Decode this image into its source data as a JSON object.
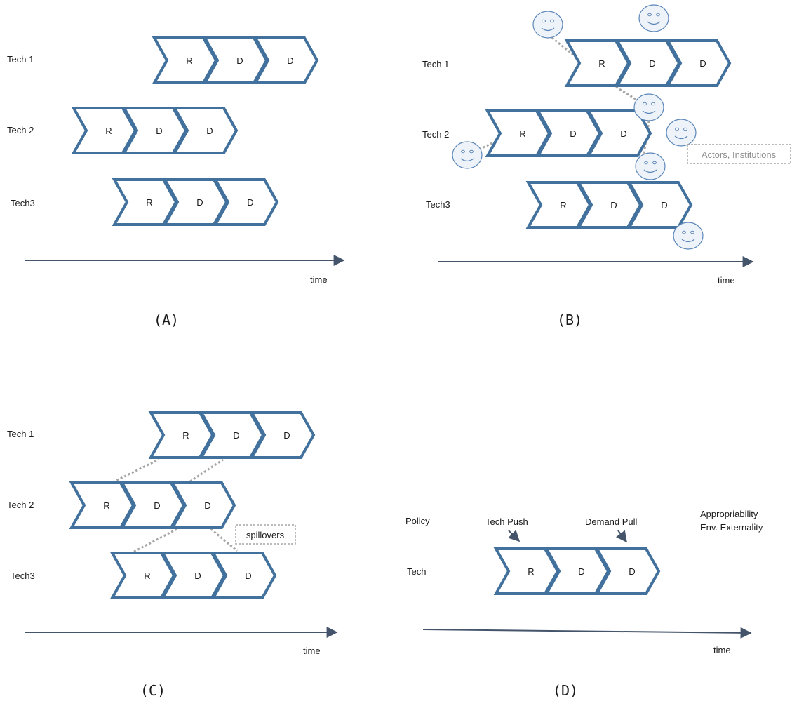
{
  "colors": {
    "chevron": "#41719c",
    "axis": "#44546a",
    "dotted": "#a6a6a6",
    "callout_text": "#8c8c8c",
    "face": "#5b86b8"
  },
  "panels": [
    {
      "letter": "(A)",
      "time_label": "time",
      "rows": [
        {
          "label": "Tech 1",
          "stages": [
            "R",
            "D",
            "D"
          ]
        },
        {
          "label": "Tech 2",
          "stages": [
            "R",
            "D",
            "D"
          ]
        },
        {
          "label": "Tech3",
          "stages": [
            "R",
            "D",
            "D"
          ]
        }
      ]
    },
    {
      "letter": "(B)",
      "time_label": "time",
      "rows": [
        {
          "label": "Tech 1",
          "stages": [
            "R",
            "D",
            "D"
          ]
        },
        {
          "label": "Tech 2",
          "stages": [
            "R",
            "D",
            "D"
          ]
        },
        {
          "label": "Tech3",
          "stages": [
            "R",
            "D",
            "D"
          ]
        }
      ],
      "callout": "Actors, Institutions",
      "actor_icon": "smiley-face-icon"
    },
    {
      "letter": "(C)",
      "time_label": "time",
      "rows": [
        {
          "label": "Tech 1",
          "stages": [
            "R",
            "D",
            "D"
          ]
        },
        {
          "label": "Tech 2",
          "stages": [
            "R",
            "D",
            "D"
          ]
        },
        {
          "label": "Tech3",
          "stages": [
            "R",
            "D",
            "D"
          ]
        }
      ],
      "callout": "spillovers"
    },
    {
      "letter": "(D)",
      "time_label": "time",
      "rows": [
        {
          "label": "Tech",
          "stages": [
            "R",
            "D",
            "D"
          ]
        }
      ],
      "policy_label": "Policy",
      "tech_push_label": "Tech Push",
      "demand_pull_label": "Demand Pull",
      "appropriability_label": "Appropriability",
      "externality_label": "Env. Externality"
    }
  ]
}
